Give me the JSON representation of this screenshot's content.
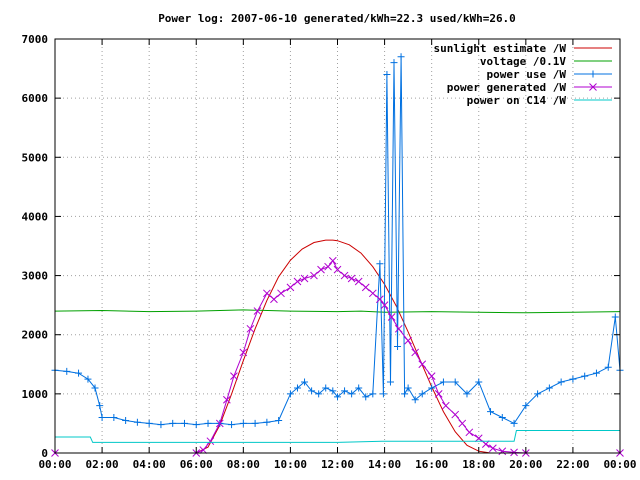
{
  "chart_data": {
    "type": "line",
    "title": "Power log: 2007-06-10 generated/kWh=22.3 used/kWh=26.0",
    "xlabel": "",
    "ylabel": "",
    "xlim": [
      0,
      24
    ],
    "ylim": [
      0,
      7000
    ],
    "x_ticks": [
      "00:00",
      "02:00",
      "04:00",
      "06:00",
      "08:00",
      "10:00",
      "12:00",
      "14:00",
      "16:00",
      "18:00",
      "20:00",
      "22:00",
      "00:00"
    ],
    "y_ticks": [
      "0",
      "1000",
      "2000",
      "3000",
      "4000",
      "5000",
      "6000",
      "7000"
    ],
    "grid": true,
    "legend_position": "top-right",
    "series": [
      {
        "name": "sunlight estimate /W",
        "color": "#cc0000",
        "marker": "none",
        "x": [
          0,
          6,
          6.5,
          7,
          7.5,
          8,
          8.5,
          9,
          9.5,
          10,
          10.5,
          11,
          11.5,
          11.8,
          12,
          12.5,
          13,
          13.5,
          14,
          14.5,
          15,
          15.5,
          16,
          16.5,
          17,
          17.5,
          18,
          18.5,
          19,
          20,
          24
        ],
        "y": [
          0,
          0,
          100,
          470,
          1000,
          1560,
          2100,
          2580,
          2980,
          3260,
          3450,
          3560,
          3600,
          3600,
          3590,
          3520,
          3380,
          3150,
          2850,
          2480,
          2050,
          1580,
          1120,
          700,
          360,
          130,
          30,
          0,
          0,
          0,
          0
        ]
      },
      {
        "name": "voltage /0.1V",
        "color": "#00a000",
        "marker": "none",
        "x": [
          0,
          2,
          4,
          6,
          8,
          10,
          12,
          13,
          14,
          16,
          18,
          20,
          22,
          24
        ],
        "y": [
          2400,
          2410,
          2390,
          2400,
          2420,
          2400,
          2390,
          2400,
          2380,
          2390,
          2380,
          2370,
          2380,
          2390
        ]
      },
      {
        "name": "power use /W",
        "color": "#0070e0",
        "marker": "plus",
        "x": [
          0,
          0.5,
          1,
          1.4,
          1.7,
          1.9,
          2,
          2.5,
          3,
          3.5,
          4,
          4.5,
          5,
          5.5,
          6,
          6.5,
          7,
          7.5,
          8,
          8.5,
          9,
          9.5,
          10,
          10.3,
          10.6,
          10.9,
          11.2,
          11.5,
          11.8,
          12,
          12.3,
          12.6,
          12.9,
          13.2,
          13.5,
          13.8,
          13.95,
          14.1,
          14.25,
          14.4,
          14.55,
          14.7,
          14.85,
          15,
          15.3,
          15.6,
          16,
          16.5,
          17,
          17.5,
          18,
          18.5,
          19,
          19.5,
          20,
          20.5,
          21,
          21.5,
          22,
          22.5,
          23,
          23.5,
          23.8,
          24
        ],
        "y": [
          1400,
          1380,
          1350,
          1250,
          1100,
          800,
          600,
          600,
          550,
          520,
          500,
          480,
          500,
          500,
          480,
          500,
          500,
          480,
          500,
          500,
          520,
          550,
          1000,
          1100,
          1200,
          1050,
          1000,
          1100,
          1050,
          950,
          1050,
          1000,
          1100,
          950,
          1000,
          3200,
          1000,
          6400,
          1200,
          6600,
          1800,
          6700,
          1000,
          1100,
          900,
          1000,
          1100,
          1200,
          1200,
          1000,
          1200,
          700,
          600,
          500,
          800,
          1000,
          1100,
          1200,
          1250,
          1300,
          1350,
          1450,
          2300,
          1400
        ]
      },
      {
        "name": "power generated /W",
        "color": "#b000d0",
        "marker": "cross",
        "x": [
          0,
          6,
          6.3,
          6.6,
          7,
          7.3,
          7.6,
          8,
          8.3,
          8.6,
          9,
          9.3,
          9.6,
          10,
          10.3,
          10.6,
          11,
          11.3,
          11.6,
          11.8,
          12,
          12.3,
          12.6,
          12.9,
          13.2,
          13.5,
          13.8,
          14,
          14.3,
          14.6,
          15,
          15.3,
          15.6,
          16,
          16.3,
          16.6,
          17,
          17.3,
          17.6,
          18,
          18.3,
          18.6,
          19,
          19.5,
          20,
          24
        ],
        "y": [
          0,
          0,
          50,
          200,
          500,
          900,
          1300,
          1700,
          2100,
          2400,
          2700,
          2600,
          2700,
          2800,
          2900,
          2950,
          3000,
          3100,
          3150,
          3250,
          3100,
          3000,
          2950,
          2900,
          2800,
          2700,
          2600,
          2500,
          2300,
          2100,
          1900,
          1700,
          1500,
          1300,
          1000,
          800,
          650,
          500,
          350,
          250,
          150,
          80,
          30,
          10,
          0,
          0
        ]
      },
      {
        "name": "power on C14 /W",
        "color": "#00c8c8",
        "marker": "none",
        "x": [
          0,
          1.5,
          1.6,
          6,
          8,
          10,
          12,
          14,
          16,
          18,
          19.5,
          19.6,
          23,
          24
        ],
        "y": [
          270,
          270,
          180,
          180,
          180,
          180,
          180,
          200,
          200,
          200,
          200,
          380,
          380,
          380
        ]
      }
    ]
  }
}
